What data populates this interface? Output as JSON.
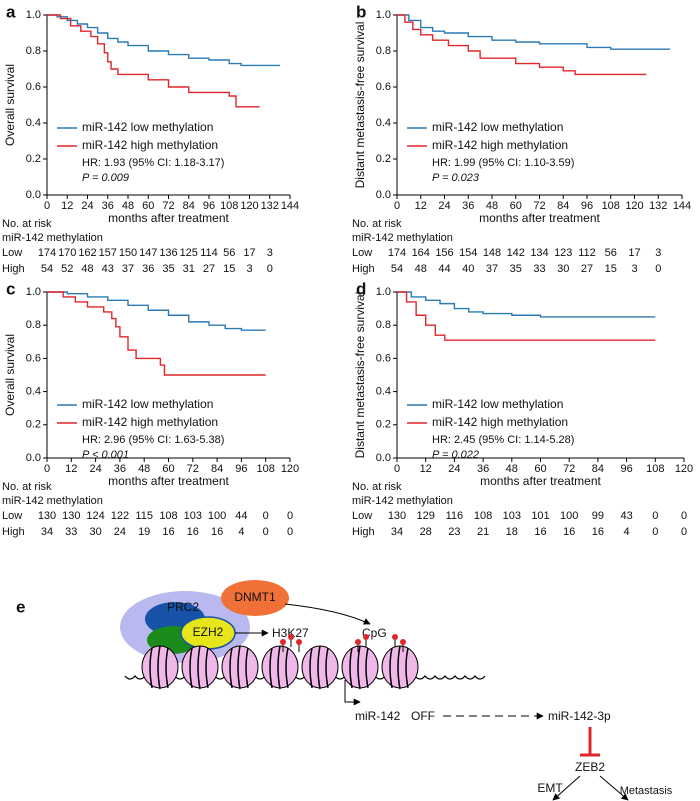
{
  "chart_data": [
    {
      "type": "line",
      "panel": "a",
      "ylabel": "Overall survival",
      "xlabel": "months after treatment",
      "xlim": [
        0,
        144
      ],
      "xticks": [
        0,
        12,
        24,
        36,
        48,
        60,
        72,
        84,
        96,
        108,
        120,
        132,
        144
      ],
      "ylim": [
        0,
        1
      ],
      "yticks": [
        {
          "value": 0,
          "label": "0.0"
        },
        0.2,
        0.4,
        0.6,
        0.8,
        {
          "value": 1,
          "label": "1.0"
        }
      ],
      "series": [
        {
          "name": "miR-142 low methylation",
          "color": "#2a7ab5",
          "x": [
            0,
            6,
            12,
            18,
            24,
            30,
            36,
            42,
            48,
            60,
            72,
            84,
            96,
            108,
            115,
            138
          ],
          "values": [
            1,
            0.99,
            0.97,
            0.95,
            0.93,
            0.9,
            0.87,
            0.85,
            0.83,
            0.8,
            0.78,
            0.76,
            0.75,
            0.73,
            0.72,
            0.72
          ]
        },
        {
          "name": "miR-142 high methylation",
          "color": "#e0262b",
          "x": [
            0,
            8,
            14,
            20,
            26,
            30,
            34,
            36,
            38,
            42,
            60,
            72,
            84,
            108,
            112,
            126
          ],
          "values": [
            1,
            0.98,
            0.94,
            0.91,
            0.88,
            0.84,
            0.79,
            0.74,
            0.7,
            0.67,
            0.64,
            0.6,
            0.57,
            0.55,
            0.49,
            0.49
          ]
        }
      ],
      "hr": "HR: 1.93 (95% CI: 1.18-3.17)",
      "p": "P = 0.009",
      "risk_table": {
        "title": "No. at risk",
        "subtitle": "miR-142 methylation",
        "rows": [
          {
            "name": "Low",
            "counts": [
              "174",
              "170",
              "162",
              "157",
              "150",
              "147",
              "136",
              "125",
              "114",
              "56",
              "17",
              "3"
            ]
          },
          {
            "name": "High",
            "counts": [
              "54",
              "52",
              "48",
              "43",
              "37",
              "36",
              "35",
              "31",
              "27",
              "15",
              "3",
              "0"
            ]
          }
        ]
      }
    },
    {
      "type": "line",
      "panel": "b",
      "ylabel": "Distant metastasis-free survival",
      "xlabel": "months after treatment",
      "xlim": [
        0,
        144
      ],
      "xticks": [
        0,
        12,
        24,
        36,
        48,
        60,
        72,
        84,
        96,
        108,
        120,
        132,
        144
      ],
      "ylim": [
        0,
        1
      ],
      "yticks": [
        {
          "value": 0,
          "label": "0.0"
        },
        0.2,
        0.4,
        0.6,
        0.8,
        {
          "value": 1,
          "label": "1.0"
        }
      ],
      "series": [
        {
          "name": "miR-142 low methylation",
          "color": "#2a7ab5",
          "x": [
            0,
            6,
            12,
            18,
            24,
            36,
            48,
            60,
            72,
            96,
            108,
            138
          ],
          "values": [
            1,
            0.97,
            0.93,
            0.91,
            0.9,
            0.88,
            0.86,
            0.85,
            0.84,
            0.82,
            0.81,
            0.81
          ]
        },
        {
          "name": "miR-142 high methylation",
          "color": "#e0262b",
          "x": [
            0,
            4,
            8,
            12,
            18,
            26,
            36,
            42,
            60,
            72,
            84,
            90,
            126
          ],
          "values": [
            1,
            0.96,
            0.92,
            0.89,
            0.86,
            0.83,
            0.8,
            0.76,
            0.73,
            0.71,
            0.69,
            0.67,
            0.67
          ]
        }
      ],
      "hr": "HR: 1.99 (95% CI: 1.10-3.59)",
      "p": "P = 0.023",
      "risk_table": {
        "title": "No. at risk",
        "subtitle": "miR-142 methylation",
        "rows": [
          {
            "name": "Low",
            "counts": [
              "174",
              "164",
              "156",
              "154",
              "148",
              "142",
              "134",
              "123",
              "112",
              "56",
              "17",
              "3"
            ]
          },
          {
            "name": "High",
            "counts": [
              "54",
              "48",
              "44",
              "40",
              "37",
              "35",
              "33",
              "30",
              "27",
              "15",
              "3",
              "0"
            ]
          }
        ]
      }
    },
    {
      "type": "line",
      "panel": "c",
      "ylabel": "Overall survival",
      "xlabel": "months after treatment",
      "xlim": [
        0,
        120
      ],
      "xticks": [
        0,
        12,
        24,
        36,
        48,
        60,
        72,
        84,
        96,
        108,
        120
      ],
      "ylim": [
        0,
        1
      ],
      "yticks": [
        {
          "value": 0,
          "label": "0.0"
        },
        0.2,
        0.4,
        0.6,
        0.8,
        {
          "value": 1,
          "label": "1.0"
        }
      ],
      "series": [
        {
          "name": "miR-142 low methylation",
          "color": "#2a7ab5",
          "x": [
            0,
            10,
            20,
            30,
            40,
            50,
            60,
            70,
            80,
            88,
            96,
            108
          ],
          "values": [
            1,
            0.99,
            0.97,
            0.95,
            0.92,
            0.89,
            0.86,
            0.82,
            0.8,
            0.78,
            0.77,
            0.77
          ]
        },
        {
          "name": "miR-142 high methylation",
          "color": "#e0262b",
          "x": [
            0,
            8,
            14,
            20,
            28,
            32,
            34,
            36,
            40,
            44,
            56,
            58,
            108
          ],
          "values": [
            1,
            0.97,
            0.94,
            0.91,
            0.88,
            0.84,
            0.79,
            0.73,
            0.65,
            0.6,
            0.56,
            0.5,
            0.5
          ]
        }
      ],
      "hr": "HR: 2.96 (95% CI: 1.63-5.38)",
      "p": "P < 0.001",
      "risk_table": {
        "title": "No. at risk",
        "subtitle": "miR-142 methylation",
        "rows": [
          {
            "name": "Low",
            "counts": [
              "130",
              "130",
              "124",
              "122",
              "115",
              "108",
              "103",
              "100",
              "44",
              "0",
              "0"
            ]
          },
          {
            "name": "High",
            "counts": [
              "34",
              "33",
              "30",
              "24",
              "19",
              "16",
              "16",
              "16",
              "4",
              "0",
              "0"
            ]
          }
        ]
      }
    },
    {
      "type": "line",
      "panel": "d",
      "ylabel": "Distant metastasis-free survival",
      "xlabel": "months after treatment",
      "xlim": [
        0,
        120
      ],
      "xticks": [
        0,
        12,
        24,
        36,
        48,
        60,
        72,
        84,
        96,
        108,
        120
      ],
      "ylim": [
        0,
        1
      ],
      "yticks": [
        {
          "value": 0,
          "label": "0.0"
        },
        0.2,
        0.4,
        0.6,
        0.8,
        {
          "value": 1,
          "label": "1.0"
        }
      ],
      "series": [
        {
          "name": "miR-142 low methylation",
          "color": "#2a7ab5",
          "x": [
            0,
            6,
            12,
            18,
            24,
            30,
            36,
            48,
            60,
            108
          ],
          "values": [
            1,
            0.97,
            0.95,
            0.93,
            0.9,
            0.88,
            0.87,
            0.86,
            0.85,
            0.85
          ]
        },
        {
          "name": "miR-142 high methylation",
          "color": "#e0262b",
          "x": [
            0,
            4,
            8,
            12,
            16,
            20,
            108
          ],
          "values": [
            1,
            0.94,
            0.86,
            0.8,
            0.74,
            0.71,
            0.71
          ]
        }
      ],
      "hr": "HR: 2.45 (95% CI: 1.14-5.28)",
      "p": "P = 0.022",
      "risk_table": {
        "title": "No. at risk",
        "subtitle": "miR-142 methylation",
        "rows": [
          {
            "name": "Low",
            "counts": [
              "130",
              "129",
              "116",
              "108",
              "103",
              "101",
              "100",
              "99",
              "43",
              "0",
              "0"
            ]
          },
          {
            "name": "High",
            "counts": [
              "34",
              "28",
              "23",
              "21",
              "18",
              "16",
              "16",
              "16",
              "4",
              "0",
              "0"
            ]
          }
        ]
      }
    }
  ],
  "diagram": {
    "panel": "e",
    "prc2": "PRC2",
    "ezh2": "EZH2",
    "dnmt1": "DNMT1",
    "h3k27": "H3K27",
    "cpg": "CpG",
    "mir142": "miR-142",
    "off": "OFF",
    "mir142_3p": "miR-142-3p",
    "zeb2": "ZEB2",
    "emt": "EMT",
    "metastasis": "Metastasis"
  }
}
